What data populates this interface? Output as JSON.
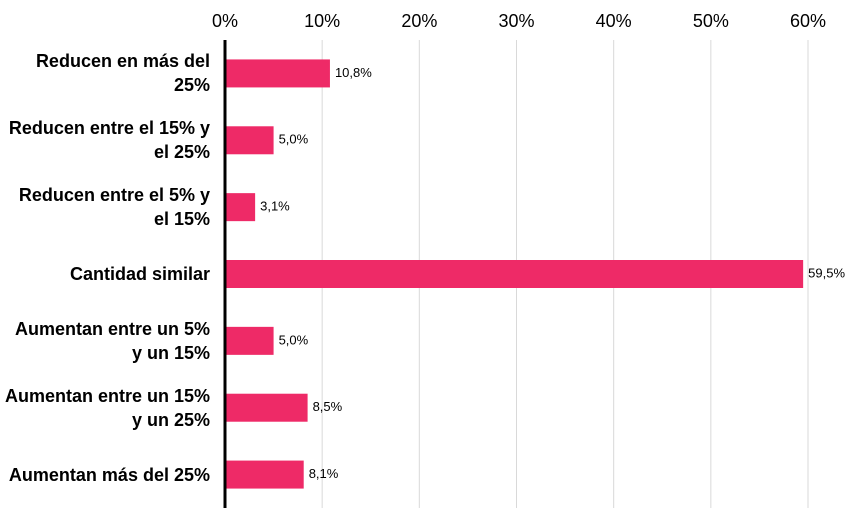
{
  "chart_data": {
    "type": "barh",
    "categories": [
      "Reducen en más del 25%",
      "Reducen entre el 15% y el 25%",
      "Reducen entre el 5% y el 15%",
      "Cantidad similar",
      "Aumentan entre un 5% y un 15%",
      "Aumentan entre un 15% y un 25%",
      "Aumentan más del 25%"
    ],
    "values": [
      10.8,
      5.0,
      3.1,
      59.5,
      5.0,
      8.5,
      8.1
    ],
    "value_labels": [
      "10,8%",
      "5,0%",
      "3,1%",
      "59,5%",
      "5,0%",
      "8,5%",
      "8,1%"
    ],
    "color": "#ee2a67",
    "xlim": [
      0,
      60
    ],
    "xticks": [
      {
        "value": 0,
        "label": "0%"
      },
      {
        "value": 10,
        "label": "10%"
      },
      {
        "value": 20,
        "label": "20%"
      },
      {
        "value": 30,
        "label": "30%"
      },
      {
        "value": 40,
        "label": "40%"
      },
      {
        "value": 50,
        "label": "50%"
      },
      {
        "value": 60,
        "label": "60%"
      }
    ],
    "grid": true
  }
}
